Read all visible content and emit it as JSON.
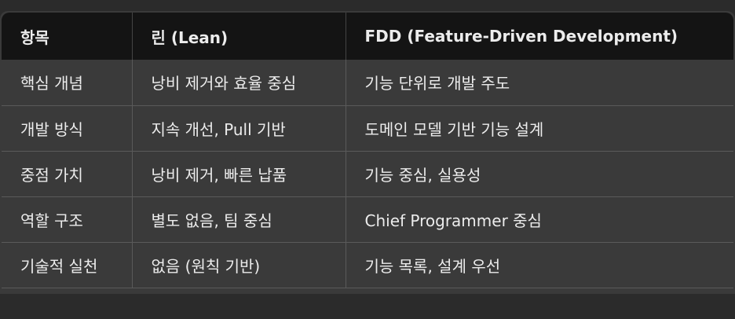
{
  "table": {
    "headers": [
      "항목",
      "린 (Lean)",
      "FDD (Feature-Driven Development)"
    ],
    "rows": [
      [
        "핵심 개념",
        "낭비 제거와 효율 중심",
        "기능 단위로 개발 주도"
      ],
      [
        "개발 방식",
        "지속 개선, Pull 기반",
        "도메인 모델 기반 기능 설계"
      ],
      [
        "중점 가치",
        "낭비 제거, 빠른 납품",
        "기능 중심, 실용성"
      ],
      [
        "역할 구조",
        "별도 없음, 팀 중심",
        "Chief Programmer 중심"
      ],
      [
        "기술적 실천",
        "없음 (원칙 기반)",
        "기능 목록, 설계 우선"
      ]
    ]
  }
}
